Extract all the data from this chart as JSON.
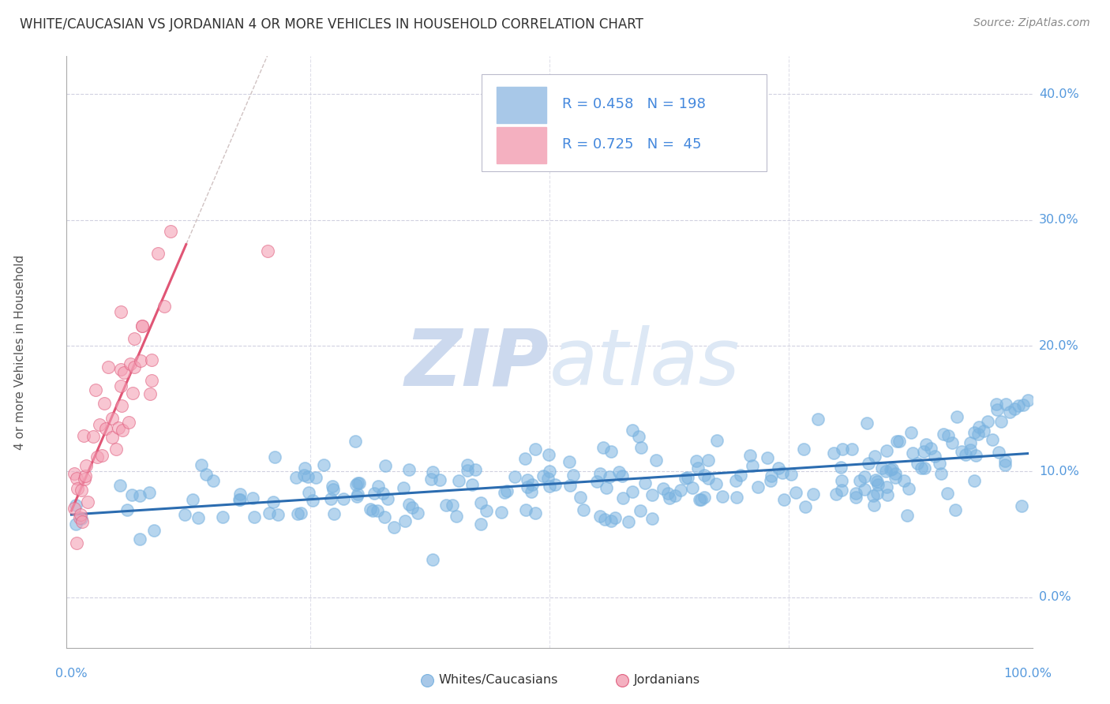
{
  "title": "WHITE/CAUCASIAN VS JORDANIAN 4 OR MORE VEHICLES IN HOUSEHOLD CORRELATION CHART",
  "source": "Source: ZipAtlas.com",
  "ylabel": "4 or more Vehicles in Household",
  "xlim": [
    -0.005,
    1.005
  ],
  "ylim": [
    -0.04,
    0.43
  ],
  "ytick_vals": [
    0.0,
    0.1,
    0.2,
    0.3,
    0.4
  ],
  "ytick_labels": [
    "0.0%",
    "10.0%",
    "20.0%",
    "30.0%",
    "40.0%"
  ],
  "xtick_vals": [
    0.0,
    1.0
  ],
  "xtick_labels": [
    "0.0%",
    "100.0%"
  ],
  "watermark_zip": "ZIP",
  "watermark_atlas": "atlas",
  "watermark_color": "#ccd9ee",
  "blue_scatter_color": "#7ab3e0",
  "blue_scatter_edge": "#5090c8",
  "pink_scatter_color": "#f4a0b5",
  "pink_scatter_edge": "#e06080",
  "blue_line_color": "#2b6cb0",
  "pink_line_color": "#e05575",
  "dashed_line_color": "#c8b8b8",
  "grid_color": "#ccccdd",
  "axis_color": "#aaaaaa",
  "background_color": "#ffffff",
  "title_color": "#333333",
  "source_color": "#888888",
  "ylabel_color": "#555555",
  "tick_label_color": "#5599dd",
  "legend_text_color": "#2266bb",
  "legend_R_color_blue": "#4488dd",
  "legend_N_color_blue": "#cc3333",
  "legend_R_color_pink": "#4488dd",
  "legend_N_color_pink": "#cc3333",
  "blue_R": 0.458,
  "blue_N": 198,
  "pink_R": 0.725,
  "pink_N": 45
}
